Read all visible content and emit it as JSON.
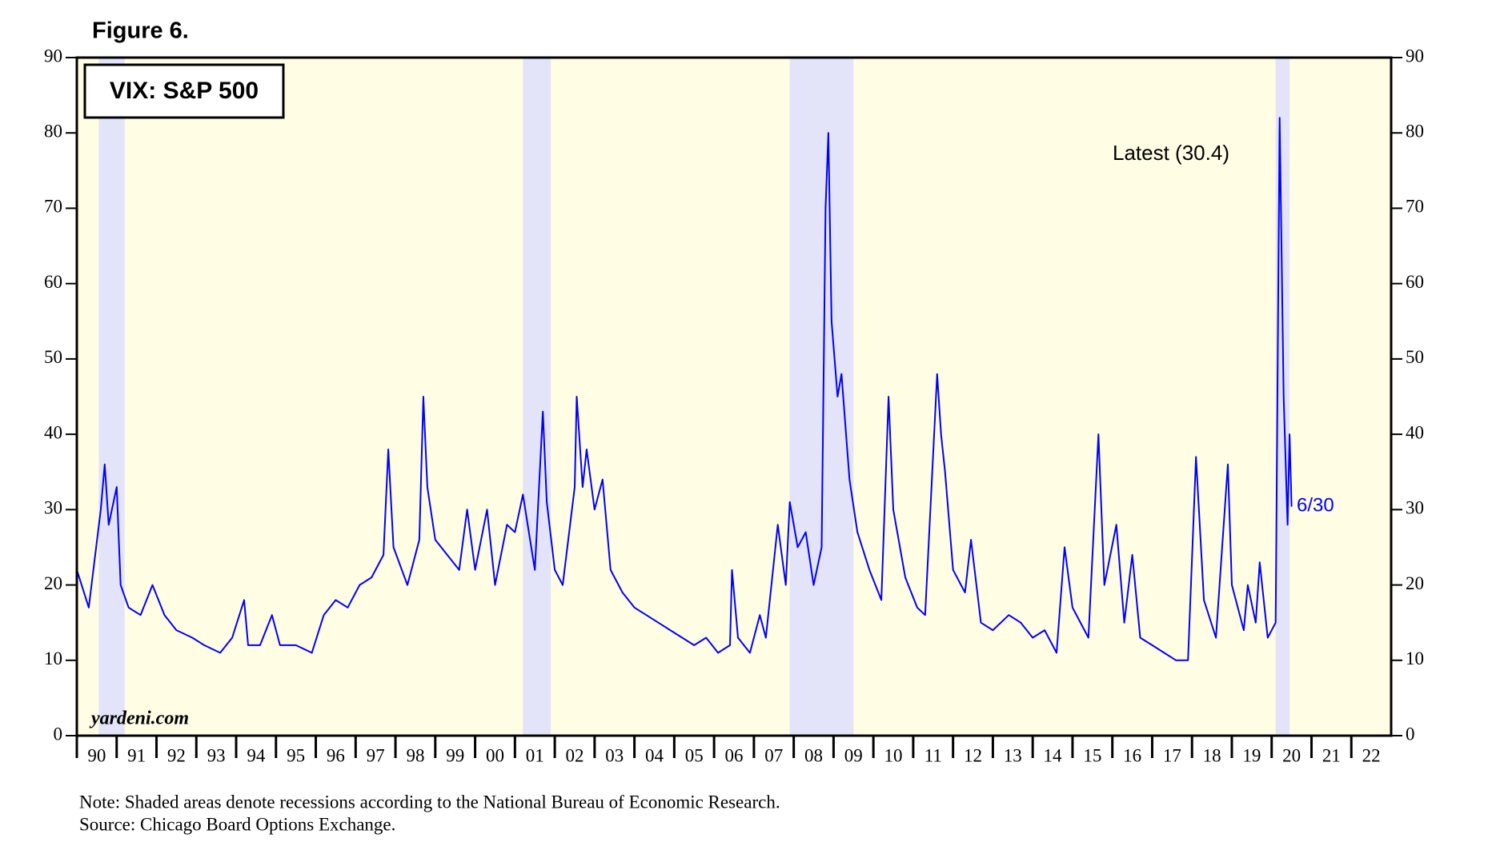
{
  "chart_data": {
    "type": "line",
    "title": "Figure 6.",
    "subtitle": "VIX: S&P 500",
    "annotations": [
      "Latest (30.4)",
      "6/30"
    ],
    "watermark": "yardeni.com",
    "notes": [
      "Note: Shaded areas denote recessions according to the National Bureau of Economic Research.",
      "Source: Chicago Board Options Exchange."
    ],
    "xlim": [
      1990,
      2023
    ],
    "ylim": [
      0,
      90
    ],
    "yticks": [
      0,
      10,
      20,
      30,
      40,
      50,
      60,
      70,
      80,
      90
    ],
    "xticks": [
      {
        "value": 1990.5,
        "label": "90"
      },
      {
        "value": 1991.5,
        "label": "91"
      },
      {
        "value": 1992.5,
        "label": "92"
      },
      {
        "value": 1993.5,
        "label": "93"
      },
      {
        "value": 1994.5,
        "label": "94"
      },
      {
        "value": 1995.5,
        "label": "95"
      },
      {
        "value": 1996.5,
        "label": "96"
      },
      {
        "value": 1997.5,
        "label": "97"
      },
      {
        "value": 1998.5,
        "label": "98"
      },
      {
        "value": 1999.5,
        "label": "99"
      },
      {
        "value": 2000.5,
        "label": "00"
      },
      {
        "value": 2001.5,
        "label": "01"
      },
      {
        "value": 2002.5,
        "label": "02"
      },
      {
        "value": 2003.5,
        "label": "03"
      },
      {
        "value": 2004.5,
        "label": "04"
      },
      {
        "value": 2005.5,
        "label": "05"
      },
      {
        "value": 2006.5,
        "label": "06"
      },
      {
        "value": 2007.5,
        "label": "07"
      },
      {
        "value": 2008.5,
        "label": "08"
      },
      {
        "value": 2009.5,
        "label": "09"
      },
      {
        "value": 2010.5,
        "label": "10"
      },
      {
        "value": 2011.5,
        "label": "11"
      },
      {
        "value": 2012.5,
        "label": "12"
      },
      {
        "value": 2013.5,
        "label": "13"
      },
      {
        "value": 2014.5,
        "label": "14"
      },
      {
        "value": 2015.5,
        "label": "15"
      },
      {
        "value": 2016.5,
        "label": "16"
      },
      {
        "value": 2017.5,
        "label": "17"
      },
      {
        "value": 2018.5,
        "label": "18"
      },
      {
        "value": 2019.5,
        "label": "19"
      },
      {
        "value": 2020.5,
        "label": "20"
      },
      {
        "value": 2021.5,
        "label": "21"
      },
      {
        "value": 2022.5,
        "label": "22"
      }
    ],
    "recessions": [
      [
        1990.55,
        1991.2
      ],
      [
        2001.2,
        2001.9
      ],
      [
        2007.9,
        2009.5
      ],
      [
        2020.1,
        2020.45
      ]
    ],
    "background_color": "#fffde3",
    "recession_color": "#e3e3fa",
    "x": [
      1990.0,
      1990.3,
      1990.6,
      1990.7,
      1990.8,
      1991.0,
      1991.1,
      1991.3,
      1991.6,
      1991.9,
      1992.2,
      1992.5,
      1992.9,
      1993.2,
      1993.6,
      1993.9,
      1994.2,
      1994.3,
      1994.6,
      1994.9,
      1995.1,
      1995.5,
      1995.9,
      1996.2,
      1996.5,
      1996.8,
      1997.1,
      1997.4,
      1997.7,
      1997.82,
      1997.95,
      1998.3,
      1998.6,
      1998.7,
      1998.8,
      1999.0,
      1999.3,
      1999.6,
      1999.8,
      2000.0,
      2000.3,
      2000.5,
      2000.8,
      2001.0,
      2001.2,
      2001.5,
      2001.7,
      2001.8,
      2002.0,
      2002.2,
      2002.5,
      2002.55,
      2002.7,
      2002.8,
      2003.0,
      2003.2,
      2003.4,
      2003.7,
      2004.0,
      2004.3,
      2004.6,
      2004.9,
      2005.2,
      2005.5,
      2005.8,
      2006.1,
      2006.4,
      2006.45,
      2006.6,
      2006.9,
      2007.15,
      2007.3,
      2007.6,
      2007.8,
      2007.9,
      2008.1,
      2008.3,
      2008.5,
      2008.7,
      2008.8,
      2008.87,
      2008.95,
      2009.1,
      2009.2,
      2009.4,
      2009.6,
      2009.9,
      2010.2,
      2010.38,
      2010.5,
      2010.8,
      2011.1,
      2011.3,
      2011.6,
      2011.7,
      2011.8,
      2012.0,
      2012.3,
      2012.45,
      2012.7,
      2013.0,
      2013.4,
      2013.7,
      2014.0,
      2014.3,
      2014.6,
      2014.8,
      2015.0,
      2015.4,
      2015.65,
      2015.8,
      2016.1,
      2016.3,
      2016.5,
      2016.7,
      2017.0,
      2017.3,
      2017.6,
      2017.9,
      2018.1,
      2018.3,
      2018.6,
      2018.9,
      2019.0,
      2019.3,
      2019.4,
      2019.6,
      2019.7,
      2019.9,
      2020.1,
      2020.2,
      2020.3,
      2020.4,
      2020.45,
      2020.5
    ],
    "series": [
      {
        "name": "VIX",
        "color": "#0000ff",
        "values": [
          22,
          17,
          30,
          36,
          28,
          33,
          20,
          17,
          16,
          20,
          16,
          14,
          13,
          12,
          11,
          13,
          18,
          12,
          12,
          16,
          12,
          12,
          11,
          16,
          18,
          17,
          20,
          21,
          24,
          38,
          25,
          20,
          26,
          45,
          33,
          26,
          24,
          22,
          30,
          22,
          30,
          20,
          28,
          27,
          32,
          22,
          43,
          31,
          22,
          20,
          33,
          45,
          33,
          38,
          30,
          34,
          22,
          19,
          17,
          16,
          15,
          14,
          13,
          12,
          13,
          11,
          12,
          22,
          13,
          11,
          16,
          13,
          28,
          20,
          31,
          25,
          27,
          20,
          25,
          70,
          80,
          55,
          45,
          48,
          34,
          27,
          22,
          18,
          45,
          30,
          21,
          17,
          16,
          48,
          40,
          35,
          22,
          19,
          26,
          15,
          14,
          16,
          15,
          13,
          14,
          11,
          25,
          17,
          13,
          40,
          20,
          28,
          15,
          24,
          13,
          12,
          11,
          10,
          10,
          37,
          18,
          13,
          36,
          20,
          14,
          20,
          15,
          23,
          13,
          15,
          82,
          45,
          28,
          40,
          30.4
        ]
      }
    ]
  }
}
